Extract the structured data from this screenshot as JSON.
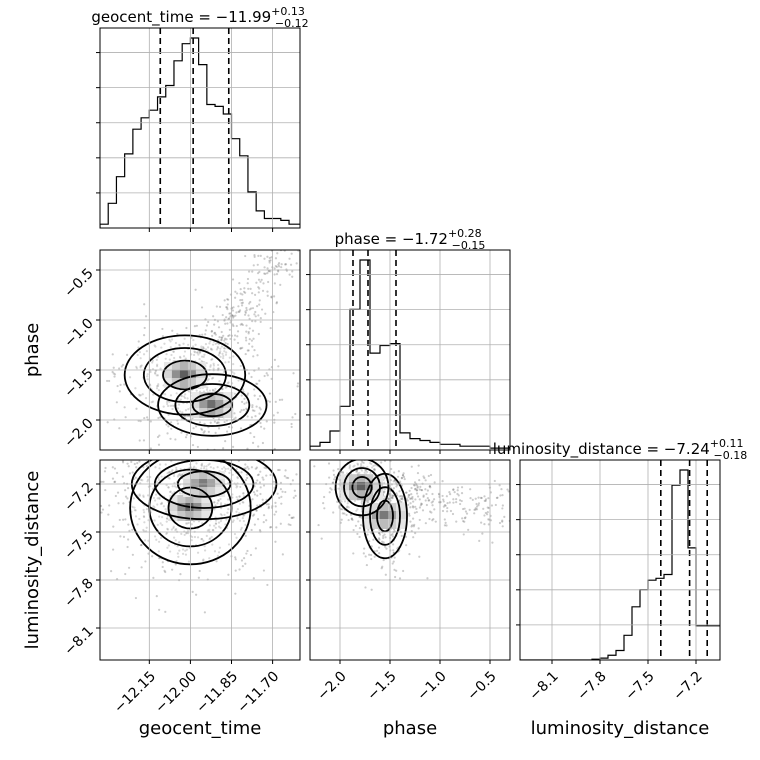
{
  "chart_data": {
    "type": "corner",
    "grid": true,
    "parameters": [
      "geocent_time",
      "phase",
      "luminosity_distance"
    ],
    "titles": [
      {
        "name": "geocent_time",
        "median": "−11.99",
        "plus": "+0.13",
        "minus": "−0.12"
      },
      {
        "name": "phase",
        "median": "−1.72",
        "plus": "+0.28",
        "minus": "−0.15"
      },
      {
        "name": "luminosity_distance",
        "median": "−7.24",
        "plus": "+0.11",
        "minus": "−0.18"
      }
    ],
    "ranges": [
      [
        -12.33,
        -11.6
      ],
      [
        -2.3,
        -0.3
      ],
      [
        -8.3,
        -7.05
      ]
    ],
    "ticks": {
      "geocent_time": [
        -12.15,
        -12.0,
        -11.85,
        -11.7
      ],
      "phase": [
        -2.0,
        -1.5,
        -1.0,
        -0.5
      ],
      "luminosity_distance": [
        -8.1,
        -7.8,
        -7.5,
        -7.2
      ]
    },
    "tick_labels": {
      "geocent_time": [
        "−12.15",
        "−12.00",
        "−11.85",
        "−11.70"
      ],
      "phase": [
        "−2.0",
        "−1.5",
        "−1.0",
        "−0.5"
      ],
      "luminosity_distance": [
        "−8.1",
        "−7.8",
        "−7.5",
        "−7.2"
      ]
    },
    "quantiles": {
      "geocent_time": [
        -12.11,
        -11.99,
        -11.86
      ],
      "phase": [
        -1.87,
        -1.72,
        -1.44
      ],
      "luminosity_distance": [
        -7.42,
        -7.24,
        -7.13
      ]
    },
    "histograms": {
      "geocent_time": {
        "edges": [
          -12.33,
          -12.3,
          -12.27,
          -12.24,
          -12.21,
          -12.18,
          -12.15,
          -12.12,
          -12.09,
          -12.06,
          -12.03,
          -12.0,
          -11.97,
          -11.94,
          -11.91,
          -11.88,
          -11.85,
          -11.82,
          -11.79,
          -11.76,
          -11.73,
          -11.7,
          -11.67,
          -11.64,
          -11.6
        ],
        "counts": [
          0.02,
          0.13,
          0.27,
          0.39,
          0.52,
          0.58,
          0.62,
          0.69,
          0.75,
          0.88,
          0.97,
          1.0,
          0.86,
          0.65,
          0.64,
          0.6,
          0.47,
          0.38,
          0.19,
          0.09,
          0.05,
          0.05,
          0.04,
          0.02
        ]
      },
      "phase": {
        "edges": [
          -2.3,
          -2.2,
          -2.1,
          -2.0,
          -1.9,
          -1.8,
          -1.7,
          -1.6,
          -1.5,
          -1.4,
          -1.3,
          -1.2,
          -1.1,
          -1.0,
          -0.9,
          -0.8,
          -0.7,
          -0.6,
          -0.5,
          -0.4,
          -0.3
        ],
        "counts": [
          0.02,
          0.04,
          0.1,
          0.23,
          0.74,
          1.0,
          0.51,
          0.55,
          0.56,
          0.09,
          0.06,
          0.05,
          0.04,
          0.03,
          0.03,
          0.02,
          0.02,
          0.02,
          0.01,
          0.01
        ]
      },
      "luminosity_distance": {
        "edges": [
          -8.3,
          -8.25,
          -8.2,
          -8.15,
          -8.1,
          -8.05,
          -8.0,
          -7.95,
          -7.9,
          -7.85,
          -7.8,
          -7.75,
          -7.7,
          -7.65,
          -7.6,
          -7.55,
          -7.5,
          -7.45,
          -7.4,
          -7.35,
          -7.3,
          -7.25,
          -7.2,
          -7.15,
          -7.1,
          -7.05
        ],
        "counts": [
          0,
          0,
          0,
          0,
          0,
          0,
          0,
          0,
          0,
          0.004,
          0.01,
          0.025,
          0.05,
          0.13,
          0.28,
          0.37,
          0.42,
          0.43,
          0.45,
          0.92,
          1.0,
          0.59,
          0.18,
          0.18,
          0.18
        ]
      }
    },
    "joint_peaks": {
      "phase_vs_geocent_time": [
        {
          "x": -12.02,
          "y": -1.55,
          "sx": 0.1,
          "sy": 0.18,
          "w": 1.0
        },
        {
          "x": -11.92,
          "y": -1.85,
          "sx": 0.09,
          "sy": 0.14,
          "w": 0.9
        }
      ],
      "luminosity_distance_vs_geocent_time": [
        {
          "x": -12.0,
          "y": -7.35,
          "sx": 0.1,
          "sy": 0.16,
          "w": 1.0
        },
        {
          "x": -11.95,
          "y": -7.2,
          "sx": 0.12,
          "sy": 0.1,
          "w": 0.8
        }
      ],
      "luminosity_distance_vs_phase": [
        {
          "x": -1.78,
          "y": -7.22,
          "sx": 0.12,
          "sy": 0.08,
          "w": 1.0
        },
        {
          "x": -1.55,
          "y": -7.4,
          "sx": 0.1,
          "sy": 0.12,
          "w": 0.6
        }
      ]
    }
  }
}
